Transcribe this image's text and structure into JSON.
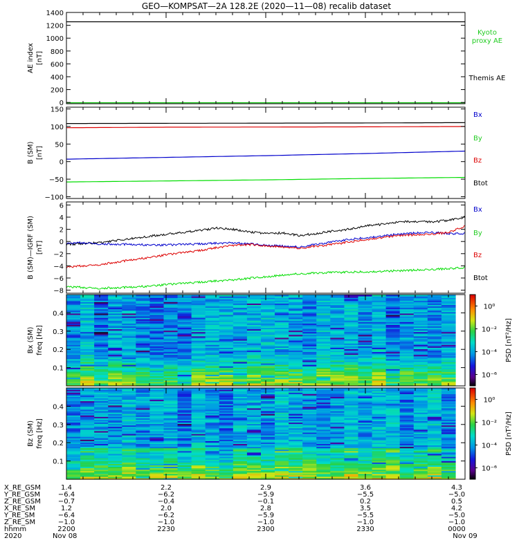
{
  "title": "GEO—KOMPSAT—2A 128.2E (2020—11—08) recalib dataset",
  "colors": {
    "black": "#000000",
    "red": "#dd0000",
    "blue": "#0000cc",
    "green": "#00dd00",
    "kyoto": "#22cc22"
  },
  "chart_data": [
    {
      "type": "line",
      "panel": "ae",
      "ylabel": "AE index",
      "yunit": "[nT]",
      "ylim": [
        -20,
        1400
      ],
      "yticks": [
        0,
        200,
        400,
        600,
        800,
        1000,
        1200,
        1400
      ],
      "xlim": [
        0,
        120
      ],
      "legend": [
        {
          "text": "Kyoto",
          "color": "#22cc22"
        },
        {
          "text": "proxy AE",
          "color": "#22cc22"
        },
        {
          "text": "Themis AE",
          "color": "#000000"
        }
      ],
      "series": [
        {
          "name": "Themis AE",
          "color": "#000000",
          "x": [
            0,
            120
          ],
          "y": [
            1255,
            1255
          ]
        },
        {
          "name": "Kyoto proxy AE",
          "color": "#00bb00",
          "x": [
            0,
            120
          ],
          "y": [
            -5,
            -5
          ]
        }
      ]
    },
    {
      "type": "line",
      "panel": "bsm",
      "ylabel": "B (SM)",
      "yunit": "[nT]",
      "ylim": [
        -105,
        155
      ],
      "yticks": [
        -100,
        -50,
        0,
        50,
        100,
        150
      ],
      "xlim": [
        0,
        120
      ],
      "legend": [
        {
          "text": "Bx",
          "color": "#0000cc"
        },
        {
          "text": "By",
          "color": "#22cc22"
        },
        {
          "text": "Bz",
          "color": "#dd0000"
        },
        {
          "text": "Btot",
          "color": "#000000"
        }
      ],
      "series": [
        {
          "name": "Btot",
          "color": "#000000",
          "x": [
            0,
            30,
            60,
            90,
            120
          ],
          "y": [
            108.5,
            109,
            109.5,
            110,
            111
          ]
        },
        {
          "name": "Bz",
          "color": "#dd0000",
          "x": [
            0,
            30,
            60,
            90,
            120
          ],
          "y": [
            96.5,
            98,
            98.5,
            99,
            100
          ]
        },
        {
          "name": "Bx",
          "color": "#0000cc",
          "x": [
            0,
            30,
            60,
            90,
            120
          ],
          "y": [
            7,
            12,
            17,
            23,
            30
          ]
        },
        {
          "name": "By",
          "color": "#00dd00",
          "x": [
            0,
            30,
            60,
            90,
            120
          ],
          "y": [
            -58,
            -55,
            -52,
            -48,
            -45
          ]
        }
      ]
    },
    {
      "type": "line",
      "panel": "dbsm",
      "ylabel": "B (SM)—IGRF (SM)",
      "yunit": "[nT]",
      "ylim": [
        -8.5,
        6.5
      ],
      "yticks": [
        -8,
        -6,
        -4,
        -2,
        0,
        2,
        4,
        6
      ],
      "xlim": [
        0,
        120
      ],
      "legend": [
        {
          "text": "Bx",
          "color": "#0000cc"
        },
        {
          "text": "By",
          "color": "#22cc22"
        },
        {
          "text": "Bz",
          "color": "#dd0000"
        },
        {
          "text": "Btot",
          "color": "#000000"
        }
      ],
      "series": [
        {
          "name": "Btot",
          "color": "#000000",
          "x": [
            0,
            10,
            20,
            30,
            40,
            45,
            50,
            55,
            60,
            65,
            70,
            75,
            80,
            85,
            90,
            95,
            100,
            105,
            110,
            115,
            120
          ],
          "y": [
            -0.5,
            -0.2,
            0.5,
            1.2,
            1.8,
            2.2,
            2.0,
            1.6,
            1.3,
            1.4,
            1.0,
            1.3,
            1.7,
            2.0,
            2.6,
            2.8,
            3.2,
            3.3,
            3.2,
            3.5,
            4.0
          ]
        },
        {
          "name": "Bx",
          "color": "#0000cc",
          "x": [
            0,
            5,
            10,
            20,
            30,
            40,
            50,
            60,
            70,
            80,
            85,
            90,
            95,
            100,
            105,
            110,
            115,
            120
          ],
          "y": [
            -0.3,
            -0.2,
            -0.4,
            -0.5,
            -0.6,
            -0.4,
            -0.2,
            -0.6,
            -0.9,
            -0.1,
            0.3,
            0.6,
            0.9,
            1.2,
            1.4,
            1.5,
            1.3,
            1.3
          ]
        },
        {
          "name": "Bz",
          "color": "#dd0000",
          "x": [
            0,
            10,
            20,
            30,
            40,
            50,
            55,
            60,
            70,
            80,
            90,
            100,
            110,
            115,
            120
          ],
          "y": [
            -4.2,
            -3.8,
            -3.0,
            -2.2,
            -1.5,
            -0.6,
            -0.5,
            -0.7,
            -1.1,
            -0.5,
            0.3,
            1.0,
            1.2,
            1.5,
            2.5
          ]
        },
        {
          "name": "By",
          "color": "#00dd00",
          "x": [
            0,
            10,
            20,
            30,
            40,
            50,
            60,
            70,
            80,
            90,
            100,
            110,
            120
          ],
          "y": [
            -7.4,
            -7.7,
            -7.5,
            -7.1,
            -6.7,
            -6.3,
            -5.8,
            -5.3,
            -5.1,
            -5.0,
            -4.8,
            -4.6,
            -4.3
          ]
        }
      ]
    },
    {
      "type": "heatmap",
      "panel": "bx_psd",
      "ylabel": "Bx (SM)",
      "yunit": "freq [Hz]",
      "ylim": [
        0.0,
        0.5
      ],
      "yticks": [
        0.1,
        0.2,
        0.3,
        0.4
      ],
      "ytick_labels": [
        "0.1",
        "0.2",
        "0.3",
        "0.4"
      ],
      "xlim": [
        0,
        120
      ],
      "colorbar": {
        "label": "PSD [nT²/Hz]",
        "range_log10": [
          -7,
          1
        ],
        "ticks": [
          "10⁰",
          "10⁻²",
          "10⁻⁴",
          "10⁻⁶"
        ]
      },
      "description_levels": "mostly 1e-3 to 1e-5 (green/cyan), higher PSD (yellow/orange) below 0.15 Hz"
    },
    {
      "type": "heatmap",
      "panel": "bz_psd",
      "ylabel": "Bz (SM)",
      "yunit": "freq [Hz]",
      "ylim": [
        0.0,
        0.5
      ],
      "yticks": [
        0.1,
        0.2,
        0.3,
        0.4
      ],
      "ytick_labels": [
        "0.1",
        "0.2",
        "0.3",
        "0.4"
      ],
      "xlim": [
        0,
        120
      ],
      "colorbar": {
        "label": "PSD [nT²/Hz]",
        "range_log10": [
          -7,
          1
        ],
        "ticks": [
          "10⁰",
          "10⁻²",
          "10⁻⁴",
          "10⁻⁶"
        ]
      },
      "description_levels": "mostly 1e-3 to 1e-5 (green/cyan), higher PSD below 0.17 Hz with yellow bands near 0.15-0.17 Hz"
    }
  ],
  "xaxis": {
    "row_labels": [
      "X_RE_GSM",
      "Y_RE_GSM",
      "Z_RE_GSM",
      "X_RE_SM",
      "Y_RE_SM",
      "Z_RE_SM",
      "hhmm",
      "2020"
    ],
    "columns": [
      [
        "1.4",
        "−6.4",
        "−0.7",
        "1.2",
        "−6.4",
        "−1.0",
        "2200",
        "Nov 08"
      ],
      [
        "2.2",
        "−6.2",
        "−0.4",
        "2.0",
        "−6.2",
        "−1.0",
        "2230",
        ""
      ],
      [
        "2.9",
        "−5.9",
        "−0.1",
        "2.8",
        "−5.9",
        "−1.0",
        "2300",
        ""
      ],
      [
        "3.6",
        "−5.5",
        "0.2",
        "3.5",
        "−5.5",
        "−1.0",
        "2330",
        ""
      ],
      [
        "4.3",
        "−5.0",
        "0.5",
        "4.2",
        "−5.0",
        "−1.0",
        "0000",
        "Nov 09"
      ]
    ]
  }
}
